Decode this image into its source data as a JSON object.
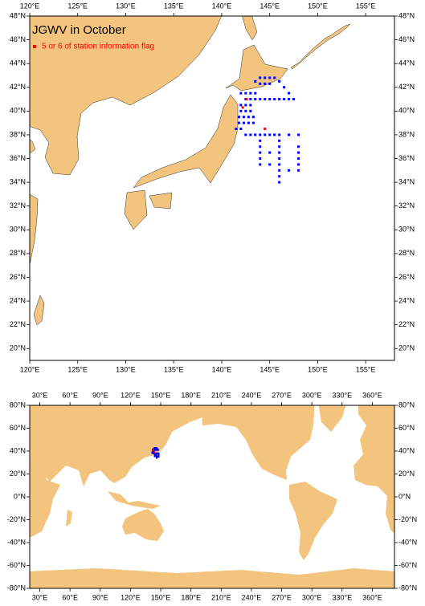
{
  "chart_data": [
    {
      "type": "map",
      "title": "JGWV in October",
      "xlim": [
        120,
        158
      ],
      "ylim": [
        19,
        48
      ],
      "xticks": [
        {
          "value": 120,
          "label": "120°E"
        },
        {
          "value": 125,
          "label": "125°E"
        },
        {
          "value": 130,
          "label": "130°E"
        },
        {
          "value": 135,
          "label": "135°E"
        },
        {
          "value": 140,
          "label": "140°E"
        },
        {
          "value": 145,
          "label": "145°E"
        },
        {
          "value": 150,
          "label": "150°E"
        },
        {
          "value": 155,
          "label": "155°E"
        }
      ],
      "yticks": [
        {
          "value": 20,
          "label": "20°N"
        },
        {
          "value": 22,
          "label": "22°N"
        },
        {
          "value": 24,
          "label": "24°N"
        },
        {
          "value": 26,
          "label": "26°N"
        },
        {
          "value": 28,
          "label": "28°N"
        },
        {
          "value": 30,
          "label": "30°N"
        },
        {
          "value": 32,
          "label": "32°N"
        },
        {
          "value": 34,
          "label": "34°N"
        },
        {
          "value": 36,
          "label": "36°N"
        },
        {
          "value": 38,
          "label": "38°N"
        },
        {
          "value": 40,
          "label": "40°N"
        },
        {
          "value": 42,
          "label": "42°N"
        },
        {
          "value": 44,
          "label": "44°N"
        },
        {
          "value": 46,
          "label": "46°N"
        },
        {
          "value": 48,
          "label": "48°N"
        }
      ],
      "series": [
        {
          "color": "#0000ff",
          "x": [
            142.5,
            143,
            143.5,
            144,
            144.5,
            145,
            145.5,
            146,
            146.5,
            147,
            147.5,
            147,
            146.5,
            146,
            145.5,
            143.5,
            144,
            144.5,
            145,
            144,
            144.5,
            145,
            142,
            142.5,
            143,
            143.5,
            142,
            142.5,
            143,
            142,
            142.5,
            143,
            141.8,
            142.3,
            142.8,
            143.3,
            141.8,
            142.3,
            142.8,
            143.3,
            141.5,
            142,
            142.5,
            143,
            143.5,
            144,
            144.5,
            145,
            145.5,
            146,
            147,
            148,
            144,
            144,
            144,
            144,
            144,
            146,
            146,
            146,
            146,
            146,
            146,
            146,
            146,
            148,
            148,
            148,
            148,
            148,
            145,
            145,
            147
          ],
          "y": [
            41,
            41,
            41,
            41,
            41,
            41,
            41,
            41,
            41,
            41,
            41,
            41.5,
            42,
            42.5,
            42.8,
            42.5,
            42.8,
            42.8,
            42.8,
            42.3,
            42.3,
            42.3,
            41.5,
            41.5,
            41.5,
            41.5,
            40.5,
            40.5,
            40.5,
            40,
            40,
            40,
            39.5,
            39.5,
            39.5,
            39.5,
            39,
            39,
            39,
            39,
            38.5,
            38.5,
            38,
            38,
            38,
            38,
            38,
            38,
            38,
            38,
            38,
            38,
            37.5,
            37,
            36.5,
            36,
            35.5,
            37.5,
            37,
            36.5,
            36,
            35.5,
            35,
            34.5,
            34,
            37,
            36.5,
            36,
            35.5,
            35,
            36.5,
            35.5,
            35
          ]
        },
        {
          "name": "5 or 6 of station information flag",
          "color": "#ff0000",
          "x": [
            144.5,
            142.2,
            142.6
          ],
          "y": [
            38.5,
            40.3,
            41
          ]
        }
      ]
    },
    {
      "type": "map",
      "xlim": [
        20,
        382
      ],
      "ylim": [
        -80,
        80
      ],
      "xticks": [
        {
          "value": 30,
          "label": "30°E"
        },
        {
          "value": 60,
          "label": "60°E"
        },
        {
          "value": 90,
          "label": "90°E"
        },
        {
          "value": 120,
          "label": "120°E"
        },
        {
          "value": 150,
          "label": "150°E"
        },
        {
          "value": 180,
          "label": "180°E"
        },
        {
          "value": 210,
          "label": "210°E"
        },
        {
          "value": 240,
          "label": "240°E"
        },
        {
          "value": 270,
          "label": "270°E"
        },
        {
          "value": 300,
          "label": "300°E"
        },
        {
          "value": 330,
          "label": "330°E"
        },
        {
          "value": 360,
          "label": "360°E"
        }
      ],
      "yticks": [
        {
          "value": -80,
          "label": "-80°N"
        },
        {
          "value": -60,
          "label": "-60°N"
        },
        {
          "value": -40,
          "label": "-40°N"
        },
        {
          "value": -20,
          "label": "-20°N"
        },
        {
          "value": 0,
          "label": "0°N"
        },
        {
          "value": 20,
          "label": "20°N"
        },
        {
          "value": 40,
          "label": "40°N"
        },
        {
          "value": 60,
          "label": "60°N"
        },
        {
          "value": 80,
          "label": "80°N"
        }
      ]
    }
  ]
}
